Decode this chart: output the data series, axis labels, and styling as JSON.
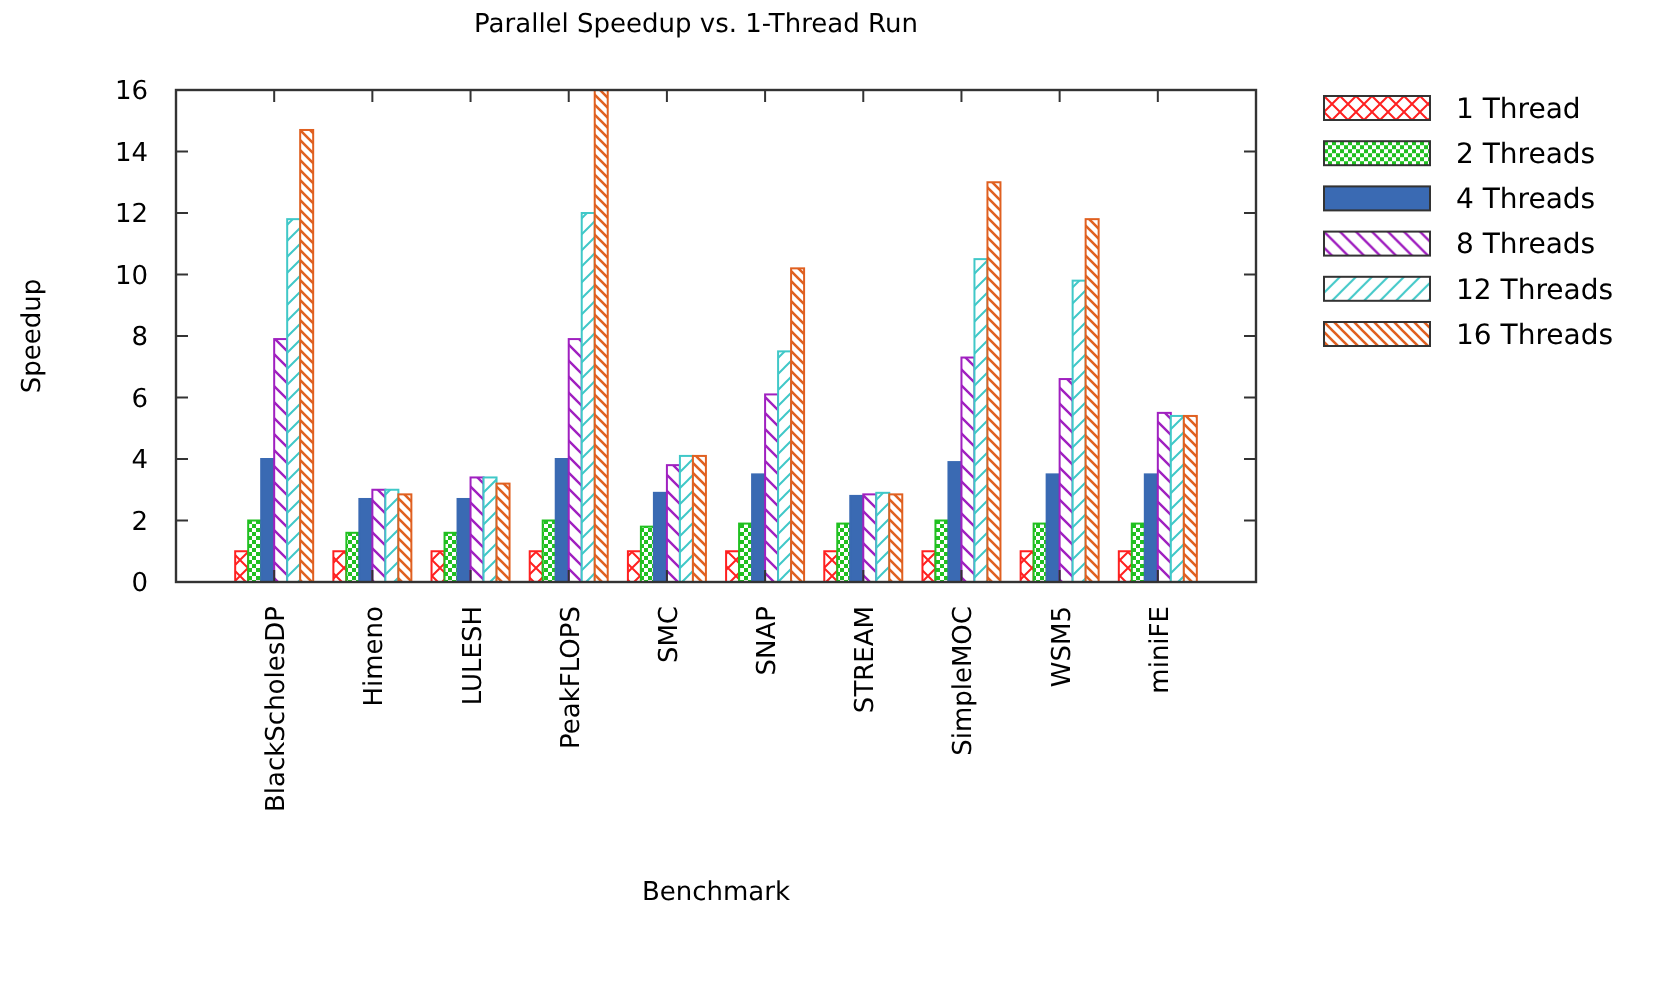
{
  "chart_data": {
    "type": "bar",
    "title": "Parallel Speedup vs. 1-Thread Run",
    "xlabel": "Benchmark",
    "ylabel": "Speedup",
    "categories": [
      "BlackScholesDP",
      "Himeno",
      "LULESH",
      "PeakFLOPS",
      "SMC",
      "SNAP",
      "STREAM",
      "SimpleMOC",
      "WSM5",
      "miniFE"
    ],
    "series": [
      {
        "name": "1 Thread",
        "color": "#ff2020",
        "values": [
          1,
          1,
          1,
          1,
          1,
          1,
          1,
          1,
          1,
          1
        ]
      },
      {
        "name": "2 Threads",
        "color": "#20c020",
        "values": [
          2,
          1.6,
          1.6,
          2,
          1.8,
          1.9,
          1.9,
          2,
          1.9,
          1.9
        ]
      },
      {
        "name": "4 Threads",
        "color": "#3a6ab3",
        "values": [
          4,
          2.7,
          2.7,
          4,
          2.9,
          3.5,
          2.8,
          3.9,
          3.5,
          3.5
        ]
      },
      {
        "name": "8 Threads",
        "color": "#a020c0",
        "values": [
          7.9,
          3,
          3.4,
          7.9,
          3.8,
          6.1,
          2.85,
          7.3,
          6.6,
          5.5
        ]
      },
      {
        "name": "12 Threads",
        "color": "#40c8c8",
        "values": [
          11.8,
          3,
          3.4,
          12,
          4.1,
          7.5,
          2.9,
          10.5,
          9.8,
          5.4
        ]
      },
      {
        "name": "16 Threads",
        "color": "#e06020",
        "values": [
          14.7,
          2.85,
          3.2,
          16,
          4.1,
          10.2,
          2.85,
          13,
          11.8,
          5.4
        ]
      }
    ],
    "ylim": [
      0,
      16
    ],
    "yticks": [
      0,
      2,
      4,
      6,
      8,
      10,
      12,
      14,
      16
    ],
    "grid": false,
    "legend": "right"
  }
}
